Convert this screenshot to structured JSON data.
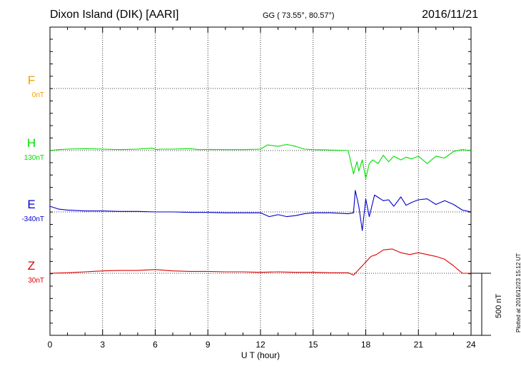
{
  "header": {
    "station": "Dixon Island (DIK)  [AARI]",
    "coords": "GG ( 73.55°,  80.57°)",
    "date": "2016/11/21"
  },
  "footer": {
    "plotted": "Plotted at 2016/12/23 15:12 UT",
    "scale": "500 nT"
  },
  "chart_data": {
    "type": "line",
    "xlabel": "U T (hour)",
    "xlim": [
      0,
      24
    ],
    "xticks": [
      0,
      3,
      6,
      9,
      12,
      15,
      18,
      21,
      24
    ],
    "scale_bar_nT": 500,
    "series": [
      {
        "name": "F",
        "baseline_label": "0nT",
        "color": "#f0a000",
        "x": [],
        "y": []
      },
      {
        "name": "H",
        "baseline_label": "130nT",
        "color": "#00dd00",
        "x": [
          0,
          0.5,
          1,
          2,
          3,
          4,
          5,
          5.8,
          6.1,
          6.3,
          7,
          8,
          8.5,
          9,
          10,
          11,
          12,
          12.4,
          13,
          13.5,
          14,
          14.5,
          15,
          16,
          17,
          17.3,
          17.4,
          17.5,
          17.6,
          17.8,
          18,
          18.2,
          18.4,
          18.7,
          19,
          19.3,
          19.6,
          20,
          20.3,
          20.6,
          21,
          21.5,
          22,
          22.5,
          23,
          23.5,
          24
        ],
        "y": [
          0,
          10,
          15,
          20,
          15,
          10,
          15,
          25,
          10,
          15,
          15,
          20,
          10,
          12,
          10,
          10,
          15,
          60,
          45,
          65,
          45,
          15,
          10,
          5,
          0,
          -250,
          -180,
          -120,
          -220,
          -100,
          -300,
          -140,
          -100,
          -140,
          -50,
          -120,
          -60,
          -100,
          -70,
          -90,
          -60,
          -140,
          -60,
          -80,
          -10,
          10,
          0
        ]
      },
      {
        "name": "E",
        "baseline_label": "-340nT",
        "color": "#0000cc",
        "x": [
          0,
          0.5,
          1,
          2,
          3,
          4,
          5,
          6,
          7,
          8,
          9,
          10,
          11,
          12,
          12.5,
          13,
          13.5,
          14,
          14.5,
          15,
          16,
          17,
          17.3,
          17.4,
          17.6,
          17.8,
          18,
          18.2,
          18.5,
          19,
          19.3,
          19.6,
          20,
          20.3,
          20.6,
          21,
          21.5,
          22,
          22.5,
          23,
          23.5,
          24
        ],
        "y": [
          60,
          30,
          20,
          10,
          10,
          5,
          5,
          0,
          0,
          -5,
          -5,
          -10,
          -10,
          -10,
          -50,
          -30,
          -50,
          -40,
          -20,
          -10,
          -10,
          -20,
          -10,
          230,
          60,
          -200,
          140,
          -50,
          180,
          120,
          130,
          60,
          160,
          70,
          100,
          130,
          140,
          80,
          120,
          80,
          20,
          0
        ]
      },
      {
        "name": "Z",
        "baseline_label": "30nT",
        "color": "#dd0000",
        "x": [
          0,
          1,
          2,
          3,
          4,
          5,
          6,
          7,
          8,
          9,
          10,
          11,
          12,
          13,
          14,
          15,
          16,
          17,
          17.3,
          17.6,
          18,
          18.3,
          18.6,
          19,
          19.5,
          20,
          20.5,
          21,
          21.5,
          22,
          22.5,
          23,
          23.5,
          24
        ],
        "y": [
          0,
          5,
          15,
          25,
          30,
          30,
          40,
          25,
          20,
          20,
          15,
          15,
          10,
          15,
          10,
          10,
          5,
          5,
          -20,
          40,
          120,
          180,
          200,
          250,
          260,
          220,
          200,
          220,
          200,
          180,
          150,
          80,
          0,
          0
        ]
      }
    ]
  }
}
